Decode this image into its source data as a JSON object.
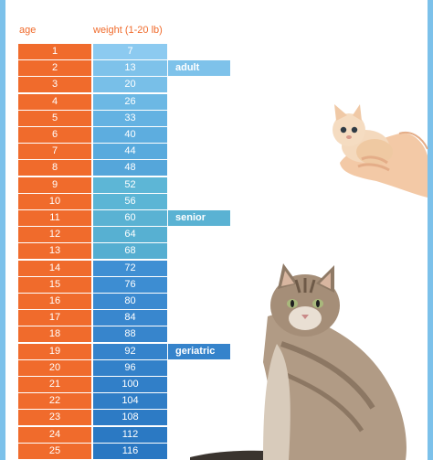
{
  "headers": {
    "age": "age",
    "weight": "weight (1-20 lb)"
  },
  "rows": [
    {
      "age": "1",
      "weight": "7",
      "color": "#8ccaf0"
    },
    {
      "age": "2",
      "weight": "13",
      "color": "#7ec2ea"
    },
    {
      "age": "3",
      "weight": "20",
      "color": "#78bfe8"
    },
    {
      "age": "4",
      "weight": "26",
      "color": "#6cb8e4"
    },
    {
      "age": "5",
      "weight": "33",
      "color": "#64b2e2"
    },
    {
      "age": "6",
      "weight": "40",
      "color": "#5daddf"
    },
    {
      "age": "7",
      "weight": "44",
      "color": "#58aadd"
    },
    {
      "age": "8",
      "weight": "48",
      "color": "#55a6da"
    },
    {
      "age": "9",
      "weight": "52",
      "color": "#5db6d6"
    },
    {
      "age": "10",
      "weight": "56",
      "color": "#5bb5d5"
    },
    {
      "age": "11",
      "weight": "60",
      "color": "#5ab2d3"
    },
    {
      "age": "12",
      "weight": "64",
      "color": "#57b0d2"
    },
    {
      "age": "13",
      "weight": "68",
      "color": "#55aed1"
    },
    {
      "age": "14",
      "weight": "72",
      "color": "#3f8fd3"
    },
    {
      "age": "15",
      "weight": "76",
      "color": "#3d8dd2"
    },
    {
      "age": "16",
      "weight": "80",
      "color": "#3b8ad0"
    },
    {
      "age": "17",
      "weight": "84",
      "color": "#3987ce"
    },
    {
      "age": "18",
      "weight": "88",
      "color": "#3785cc"
    },
    {
      "age": "19",
      "weight": "92",
      "color": "#3583cb"
    },
    {
      "age": "20",
      "weight": "96",
      "color": "#3381c9"
    },
    {
      "age": "21",
      "weight": "100",
      "color": "#317fc8"
    },
    {
      "age": "22",
      "weight": "104",
      "color": "#2f7dc6"
    },
    {
      "age": "23",
      "weight": "108",
      "color": "#2d7bc5"
    },
    {
      "age": "24",
      "weight": "112",
      "color": "#2b79c3"
    },
    {
      "age": "25",
      "weight": "116",
      "color": "#2977c2"
    }
  ],
  "stages": [
    {
      "label": "adult",
      "row_index": 1,
      "color": "#7ec2ea"
    },
    {
      "label": "senior",
      "row_index": 10,
      "color": "#5ab2d3"
    },
    {
      "label": "geriatric",
      "row_index": 18,
      "color": "#3583cb"
    }
  ],
  "images": [
    {
      "name": "kitten-in-hand-photo"
    },
    {
      "name": "tabby-cat-photo"
    }
  ]
}
